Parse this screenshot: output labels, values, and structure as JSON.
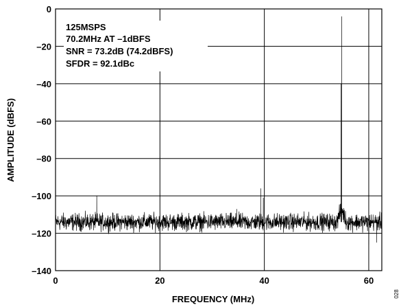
{
  "chart_data": {
    "type": "line",
    "title": "",
    "xlabel": "FREQUENCY (MHz)",
    "ylabel": "AMPLITUDE (dBFS)",
    "xlim": [
      0,
      62.5
    ],
    "ylim": [
      -140,
      0
    ],
    "x_ticks": [
      0,
      20,
      40,
      60
    ],
    "y_ticks": [
      0,
      -20,
      -40,
      -60,
      -80,
      -100,
      -120,
      -140
    ],
    "x_tick_labels": [
      "0",
      "20",
      "40",
      "60"
    ],
    "y_tick_labels": [
      "0",
      "–20",
      "–40",
      "–60",
      "–80",
      "–100",
      "–120",
      "–140"
    ],
    "grid": true,
    "annotations": [
      "125MSPS",
      "70.2MHz AT –1dBFS",
      "SNR = 73.2dB (74.2dBFS)",
      "SFDR = 92.1dBc"
    ],
    "figure_number": "028",
    "series": [
      {
        "color": "#000000",
        "noise_floor": -114,
        "spikes": [
          {
            "x": 7.9,
            "y": -100
          },
          {
            "x": 34.7,
            "y": -107
          },
          {
            "x": 39.3,
            "y": -96
          },
          {
            "x": 39.8,
            "y": -101
          },
          {
            "x": 54.8,
            "y": -4
          },
          {
            "x": 54.7,
            "y": -40
          },
          {
            "x": 60.0,
            "y": -126
          },
          {
            "x": 61.5,
            "y": -125
          }
        ]
      }
    ]
  }
}
